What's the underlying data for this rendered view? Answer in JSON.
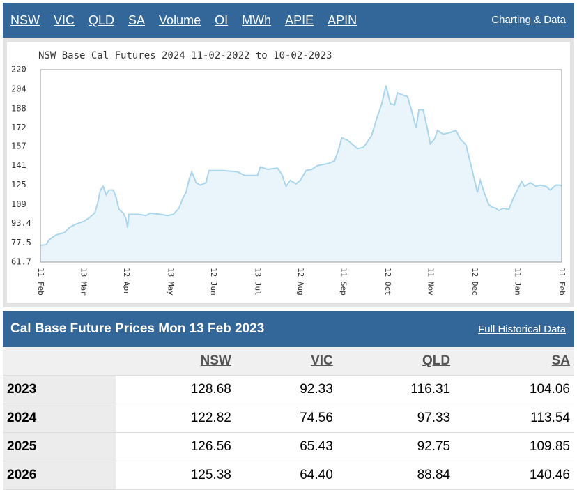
{
  "nav": {
    "links": [
      "NSW",
      "VIC",
      "QLD",
      "SA",
      "Volume",
      "OI",
      "MWh",
      "APIE",
      "APIN"
    ],
    "right": "Charting & Data"
  },
  "chart_data": {
    "type": "line",
    "title": "NSW Base Cal Futures 2024 11-02-2022 to 10-02-2023",
    "x": [
      0,
      4,
      6,
      11,
      17,
      20,
      25,
      30,
      34,
      38,
      40,
      42,
      44,
      46,
      48,
      51,
      53,
      55,
      58,
      60,
      61,
      62,
      69,
      74,
      77,
      84,
      89,
      93,
      97,
      100,
      102,
      104,
      106,
      109,
      112,
      116,
      118,
      123,
      128,
      138,
      143,
      147,
      152,
      154,
      159,
      166,
      169,
      172,
      175,
      179,
      182,
      186,
      190,
      194,
      198,
      202,
      206,
      209,
      211,
      215,
      218,
      222,
      226,
      228,
      232,
      235,
      239,
      242,
      245,
      248,
      250,
      254,
      257,
      260,
      263,
      265,
      268,
      271,
      273,
      276,
      278,
      282,
      286,
      291,
      294,
      298,
      301,
      305,
      306,
      308,
      311,
      314,
      316,
      319,
      321,
      324,
      328,
      331,
      334,
      337,
      339,
      343,
      347,
      350,
      354,
      357,
      361,
      364,
      365
    ],
    "series": [
      {
        "color": "#a9d6ee",
        "values": [
          75.5,
          76,
          80,
          84,
          86,
          90,
          93,
          95,
          98,
          102,
          110,
          121,
          124,
          117,
          121,
          121,
          115,
          105,
          102,
          97,
          90,
          101,
          101,
          100,
          102,
          101,
          100,
          101,
          106,
          115,
          119,
          129,
          136,
          127,
          125,
          127,
          137,
          137,
          137,
          136,
          133,
          133,
          133,
          140,
          138,
          139,
          134,
          124,
          129,
          126,
          129,
          137,
          138,
          141,
          142,
          143,
          145,
          155,
          164,
          162,
          159,
          155,
          156,
          159,
          166,
          178,
          192,
          207,
          192,
          191,
          201,
          199,
          198,
          186,
          172,
          187,
          187,
          171,
          159,
          163,
          170,
          167,
          168,
          170,
          163,
          158,
          144,
          124,
          119,
          129,
          118,
          109,
          107,
          106,
          104,
          106,
          105,
          114,
          121,
          128,
          124,
          127,
          124,
          125,
          124,
          121,
          125,
          125,
          124
        ]
      }
    ],
    "xlim": [
      0,
      365
    ],
    "xticks": [
      {
        "value": 0,
        "label": "11 Feb"
      },
      {
        "value": 30,
        "label": "13 Mar"
      },
      {
        "value": 60,
        "label": "12 Apr"
      },
      {
        "value": 91,
        "label": "13 May"
      },
      {
        "value": 121,
        "label": "12 Jun"
      },
      {
        "value": 152,
        "label": "13 Jul"
      },
      {
        "value": 182,
        "label": "12 Aug"
      },
      {
        "value": 212,
        "label": "11 Sep"
      },
      {
        "value": 243,
        "label": "12 Oct"
      },
      {
        "value": 273,
        "label": "11 Nov"
      },
      {
        "value": 304,
        "label": "12 Dec"
      },
      {
        "value": 334,
        "label": "11 Jan"
      },
      {
        "value": 365,
        "label": "11 Feb"
      }
    ],
    "ylim": [
      61.7,
      220
    ],
    "yticks": [
      220,
      204,
      188,
      172,
      157,
      141,
      125,
      109,
      93.4,
      77.5,
      61.7
    ],
    "area_color": "#eaf5fb"
  },
  "table": {
    "title": "Cal Base Future Prices Mon 13 Feb 2023",
    "link": "Full Historical Data",
    "columns": [
      "NSW",
      "VIC",
      "QLD",
      "SA"
    ],
    "rows": [
      {
        "label": "2023",
        "cells": [
          "128.68",
          "92.33",
          "116.31",
          "104.06"
        ]
      },
      {
        "label": "2024",
        "cells": [
          "122.82",
          "74.56",
          "97.33",
          "113.54"
        ]
      },
      {
        "label": "2025",
        "cells": [
          "126.56",
          "65.43",
          "92.75",
          "109.85"
        ]
      },
      {
        "label": "2026",
        "cells": [
          "125.38",
          "64.40",
          "88.84",
          "140.46"
        ]
      }
    ]
  }
}
